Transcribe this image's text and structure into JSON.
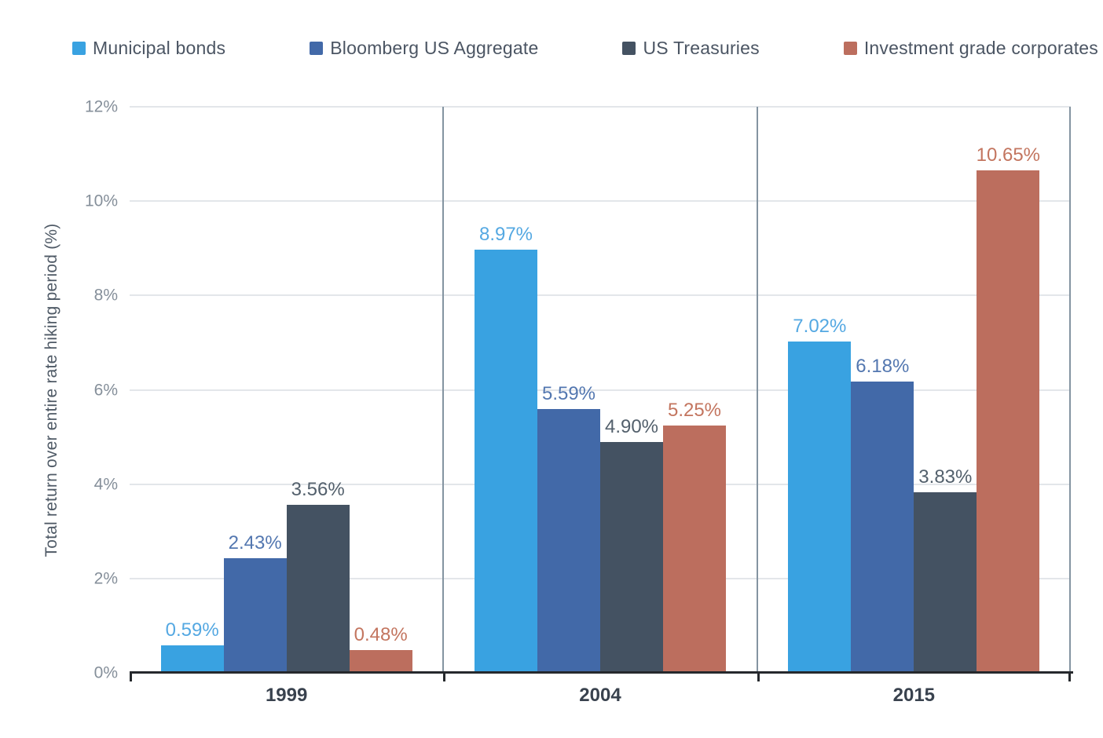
{
  "page": {
    "background": "#FFFFFF"
  },
  "chart_data": {
    "type": "bar",
    "title": "",
    "categories": [
      "1999",
      "2004",
      "2015"
    ],
    "series": [
      {
        "name": "Municipal bonds",
        "color": "#39A2E1",
        "label_color": "#54A8E2",
        "values": [
          0.59,
          8.97,
          7.02
        ],
        "labels": [
          "0.59%",
          "8.97%",
          "7.02%"
        ]
      },
      {
        "name": "Bloomberg US Aggregate",
        "color": "#4269A8",
        "label_color": "#5377B0",
        "values": [
          2.43,
          5.59,
          6.18
        ],
        "labels": [
          "2.43%",
          "5.59%",
          "6.18%"
        ]
      },
      {
        "name": "US Treasuries",
        "color": "#445262",
        "label_color": "#53606C",
        "values": [
          3.56,
          4.9,
          3.83
        ],
        "labels": [
          "3.56%",
          "4.90%",
          "3.83%"
        ]
      },
      {
        "name": "Investment grade corporates",
        "color": "#BC6E5E",
        "label_color": "#C3755F",
        "values": [
          0.48,
          5.25,
          10.65
        ],
        "labels": [
          "0.48%",
          "5.25%",
          "10.65%"
        ]
      }
    ],
    "xlabel": "",
    "ylabel": "Total return over entire rate hiking period (%)",
    "yticks": [
      "0%",
      "2%",
      "4%",
      "6%",
      "8%",
      "10%",
      "12%"
    ],
    "ylim": [
      0,
      12
    ],
    "grid": "horizontal gridlines every 2%, vertical separators between year groups",
    "legend_position": "top",
    "colors": {
      "gridline": "#E3E6EA",
      "group_separator": "#8494A1",
      "right_border": "#8494A1",
      "axis_line": "#26292D",
      "tick_label": "#858F9A",
      "category_label": "#39424E",
      "ylabel_color": "#4F5A66",
      "legend_text": "#4B5563"
    }
  }
}
